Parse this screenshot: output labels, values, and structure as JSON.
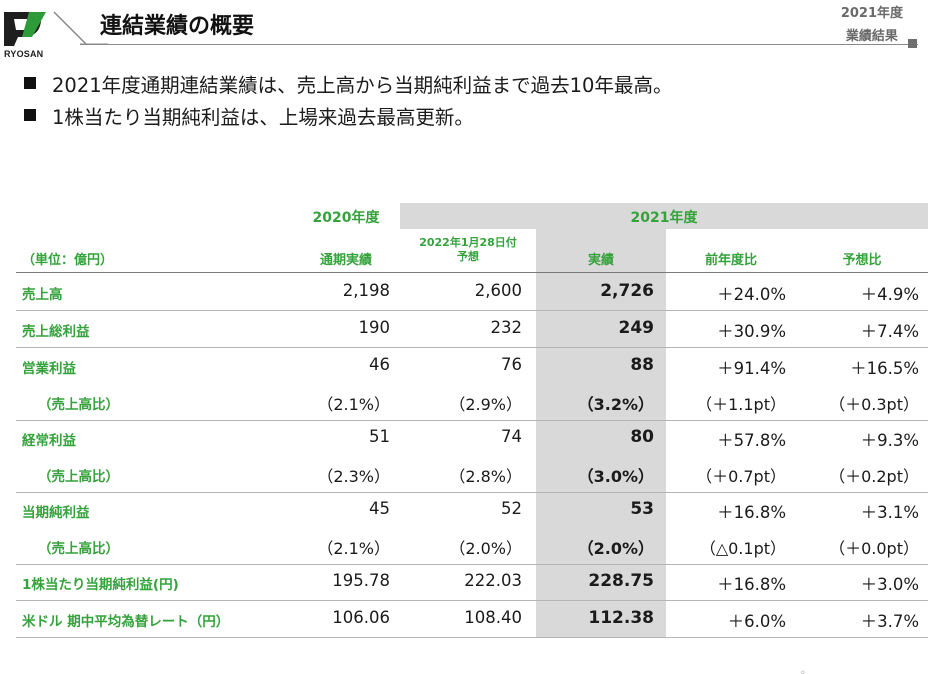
{
  "header": {
    "logo_text": "RYOSAN",
    "title": "連結業績の概要",
    "section_tag_line1": "2021年度",
    "section_tag_line2": "業績結果"
  },
  "bullets": [
    "2021年度通期連結業績は、売上高から当期純利益まで過去10年最高。",
    "1株当たり当期純利益は、上場来過去最高更新。"
  ],
  "table": {
    "header_2020": "2020年度",
    "header_2021": "2021年度",
    "unit_label": "（単位：億円）",
    "columns": {
      "c1": "通期実績",
      "c2_line1": "2022年1月28日付",
      "c2_line2": "予想",
      "c3": "実績",
      "c4": "前年度比",
      "c5": "予想比"
    },
    "rows": [
      {
        "label": "売上高",
        "c1": "2,198",
        "c2": "2,600",
        "c3": "2,726",
        "c4": "＋24.0%",
        "c5": "＋4.9%"
      },
      {
        "label": "売上総利益",
        "c1": "190",
        "c2": "232",
        "c3": "249",
        "c4": "＋30.9%",
        "c5": "＋7.4%"
      },
      {
        "label": "営業利益",
        "c1": "46",
        "c2": "76",
        "c3": "88",
        "c4": "＋91.4%",
        "c5": "＋16.5%"
      },
      {
        "label": "（売上高比）",
        "c1": "（2.1%）",
        "c2": "（2.9%）",
        "c3": "（3.2%）",
        "c4": "（＋1.1pt）",
        "c5": "（＋0.3pt）"
      },
      {
        "label": "経常利益",
        "c1": "51",
        "c2": "74",
        "c3": "80",
        "c4": "＋57.8%",
        "c5": "＋9.3%"
      },
      {
        "label": "（売上高比）",
        "c1": "（2.3%）",
        "c2": "（2.8%）",
        "c3": "（3.0%）",
        "c4": "（＋0.7pt）",
        "c5": "（＋0.2pt）"
      },
      {
        "label": "当期純利益",
        "c1": "45",
        "c2": "52",
        "c3": "53",
        "c4": "＋16.8%",
        "c5": "＋3.1%"
      },
      {
        "label": "（売上高比）",
        "c1": "（2.1%）",
        "c2": "（2.0%）",
        "c3": "（2.0%）",
        "c4": "（△0.1pt）",
        "c5": "（＋0.0pt）"
      },
      {
        "label": "1株当たり当期純利益(円)",
        "c1": "195.78",
        "c2": "222.03",
        "c3": "228.75",
        "c4": "＋16.8%",
        "c5": "＋3.0%"
      },
      {
        "label": "米ドル 期中平均為替レート（円）",
        "c1": "106.06",
        "c2": "108.40",
        "c3": "112.38",
        "c4": "＋6.0%",
        "c5": "＋3.7%"
      }
    ]
  },
  "colors": {
    "accent_green": "#35a23c",
    "band_gray": "#d9d9d9",
    "logo_green": "#2e9a3a"
  }
}
